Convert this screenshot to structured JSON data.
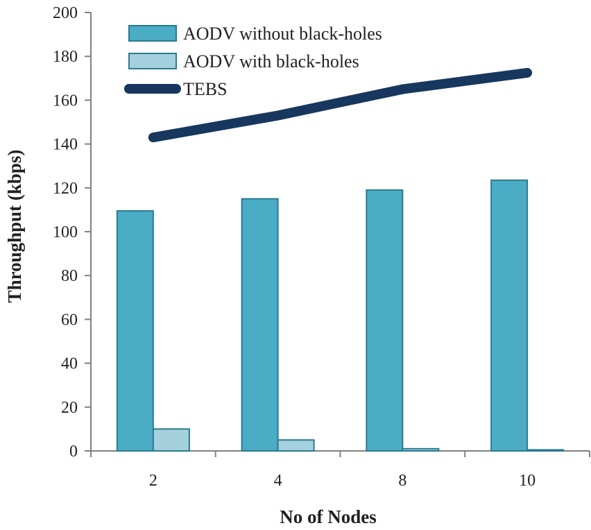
{
  "chart_data": {
    "type": "bar",
    "categories": [
      "2",
      "4",
      "8",
      "10"
    ],
    "series": [
      {
        "name": "AODV without black-holes",
        "kind": "bar",
        "values": [
          109.5,
          115,
          119,
          123.5
        ],
        "color": "#4bacc6",
        "stroke": "#2b7a8e"
      },
      {
        "name": "AODV with black-holes",
        "kind": "bar",
        "values": [
          10,
          5,
          1,
          0.5
        ],
        "color": "#a5d0de",
        "stroke": "#2b7a8e"
      },
      {
        "name": "TEBS",
        "kind": "line",
        "values": [
          143,
          153,
          165,
          172.5
        ],
        "color": "#17375e"
      }
    ],
    "title": "",
    "xlabel": "No of Nodes",
    "ylabel": "Throughput (kbps)",
    "ylim": [
      0,
      200
    ],
    "yticks": [
      "0",
      "20",
      "40",
      "60",
      "80",
      "100",
      "120",
      "140",
      "160",
      "180",
      "200"
    ],
    "grid": false,
    "legend_position": "top-left"
  }
}
